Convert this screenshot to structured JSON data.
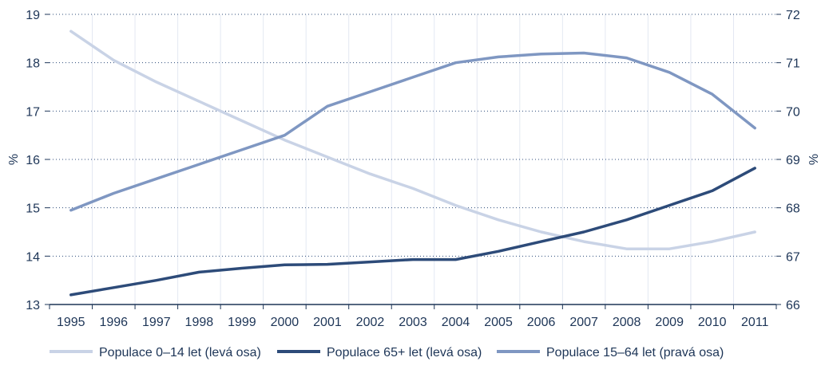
{
  "chart_data": {
    "type": "line",
    "title": "",
    "categories": [
      "1995",
      "1996",
      "1997",
      "1998",
      "1999",
      "2000",
      "2001",
      "2002",
      "2003",
      "2004",
      "2005",
      "2006",
      "2007",
      "2008",
      "2009",
      "2010",
      "2011"
    ],
    "left_axis": {
      "label": "%",
      "range": [
        13,
        19
      ],
      "ticks": [
        13,
        14,
        15,
        16,
        17,
        18,
        19
      ]
    },
    "right_axis": {
      "label": "%",
      "range": [
        66,
        72
      ],
      "ticks": [
        66,
        67,
        68,
        69,
        70,
        71,
        72
      ]
    },
    "grid": "horizontal dotted",
    "legend_position": "bottom",
    "series": [
      {
        "name": "Populace 0–14 let (levá osa)",
        "axis": "left",
        "color": "#c9d3e6",
        "values": [
          18.65,
          18.05,
          17.6,
          17.2,
          16.8,
          16.4,
          16.05,
          15.7,
          15.4,
          15.05,
          14.75,
          14.5,
          14.3,
          14.15,
          14.15,
          14.3,
          14.5
        ]
      },
      {
        "name": "Populace 65+ let (levá osa)",
        "axis": "left",
        "color": "#2d4b79",
        "values": [
          13.2,
          13.35,
          13.5,
          13.67,
          13.75,
          13.82,
          13.83,
          13.88,
          13.93,
          13.93,
          14.1,
          14.3,
          14.5,
          14.75,
          15.05,
          15.35,
          15.82
        ]
      },
      {
        "name": "Populace 15–64 let (pravá osa)",
        "axis": "right",
        "color": "#7f97c2",
        "values": [
          67.95,
          68.3,
          68.6,
          68.9,
          69.2,
          69.5,
          70.1,
          70.4,
          70.7,
          71.0,
          71.12,
          71.18,
          71.2,
          71.1,
          70.8,
          70.35,
          69.65
        ]
      }
    ]
  }
}
